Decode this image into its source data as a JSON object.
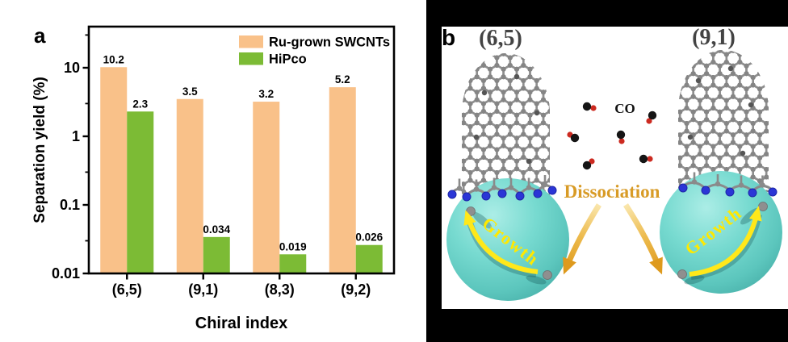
{
  "figure": {
    "panel_a_label": "a",
    "panel_b_label": "b"
  },
  "chart_data": {
    "type": "bar",
    "title": "",
    "categories": [
      "(6,5)",
      "(9,1)",
      "(8,3)",
      "(9,2)"
    ],
    "series": [
      {
        "name": "Ru-grown SWCNTs",
        "color": "#F9C189",
        "values": [
          10.2,
          3.5,
          3.2,
          5.2
        ],
        "value_labels": [
          "10.2",
          "3.5",
          "3.2",
          "5.2"
        ]
      },
      {
        "name": "HiPco",
        "color": "#7CBB35",
        "values": [
          2.3,
          0.034,
          0.019,
          0.026
        ],
        "value_labels": [
          "2.3",
          "0.034",
          "0.019",
          "0.026"
        ]
      }
    ],
    "xlabel": "Chiral index",
    "ylabel": "Separation yield (%)",
    "yscale": "log",
    "ylim": [
      0.01,
      40
    ],
    "yticks": [
      10,
      1,
      0.1,
      0.01
    ],
    "ytick_labels": [
      "10",
      "1",
      "0.1",
      "0.01"
    ],
    "minor_ticks": [
      30,
      3,
      0.3,
      0.03
    ],
    "legend_position": "top-right",
    "grid": false
  },
  "panel_b": {
    "tube_left_label": "(6,5)",
    "tube_right_label": "(9,1)",
    "co_label": "CO",
    "dissociation_label": "Dissociation",
    "growth_left_label": "Growth",
    "growth_right_label": "Growth",
    "colors": {
      "catalyst_sphere_teal": "#6FD6CC",
      "carbon_gray": "#8A8A8A",
      "interface_blue": "#2B36D6",
      "carbon_black": "#151515",
      "oxygen_red": "#CC2A20",
      "growth_yellow": "#FFE81A",
      "dissociation_gold": "#D89B26",
      "tube_label_gray": "#434343"
    }
  }
}
